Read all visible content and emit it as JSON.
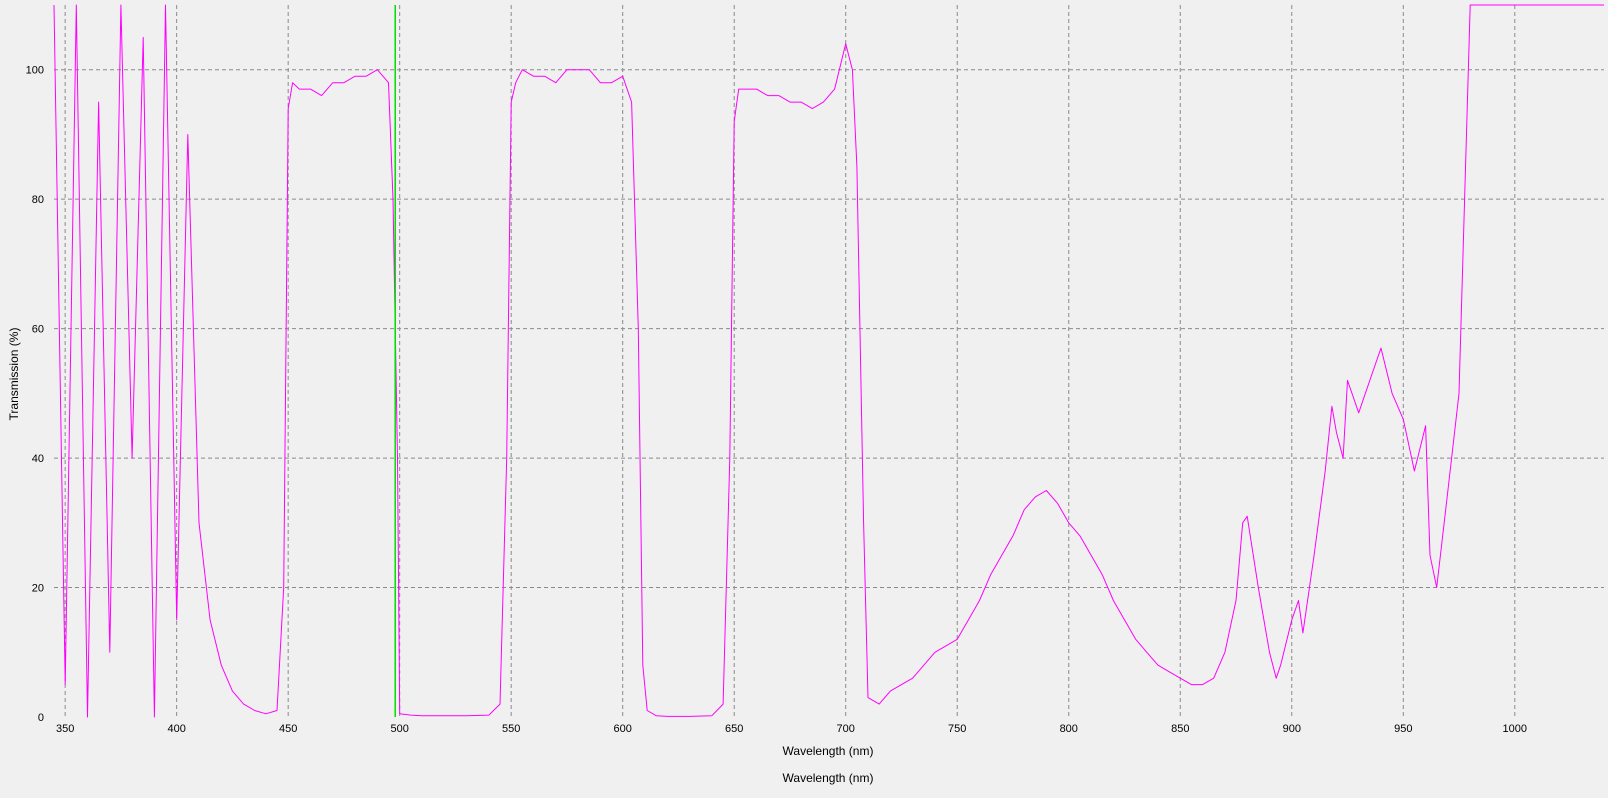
{
  "chart_data": {
    "type": "line",
    "xlabel": "Wavelength (nm)",
    "xlabel_secondary": "Wavelength (nm)",
    "ylabel": "Transmission (%)",
    "xlim": [
      345,
      1040
    ],
    "ylim": [
      0,
      110
    ],
    "x_ticks": [
      350,
      400,
      450,
      500,
      550,
      600,
      650,
      700,
      750,
      800,
      850,
      900,
      950,
      1000
    ],
    "y_ticks": [
      0,
      20,
      40,
      60,
      80,
      100
    ],
    "grid": true,
    "series_color": "#ff00ff",
    "marker": {
      "x": 498,
      "color": "#00dd00"
    },
    "series": [
      {
        "x": [
          345,
          350,
          355,
          360,
          365,
          370,
          375,
          380,
          385,
          390,
          395,
          400,
          405,
          410,
          415,
          420,
          425,
          430,
          435,
          440,
          445,
          448,
          450,
          452,
          455,
          460,
          465,
          470,
          475,
          480,
          485,
          490,
          495,
          497,
          499,
          500,
          505,
          510,
          520,
          530,
          540,
          545,
          548,
          550,
          552,
          555,
          560,
          565,
          570,
          575,
          580,
          585,
          590,
          595,
          600,
          604,
          607,
          609,
          611,
          615,
          620,
          630,
          640,
          645,
          648,
          650,
          652,
          655,
          660,
          665,
          670,
          675,
          680,
          685,
          690,
          695,
          700,
          703,
          705,
          708,
          710,
          715,
          720,
          725,
          730,
          735,
          740,
          745,
          750,
          755,
          760,
          765,
          770,
          775,
          780,
          785,
          790,
          795,
          800,
          805,
          810,
          815,
          820,
          825,
          830,
          835,
          840,
          845,
          850,
          855,
          860,
          865,
          870,
          875,
          878,
          880,
          885,
          890,
          893,
          895,
          900,
          903,
          905,
          910,
          915,
          918,
          920,
          923,
          925,
          930,
          935,
          940,
          945,
          950,
          955,
          960,
          962,
          965,
          970,
          975,
          980,
          985,
          990,
          995,
          1000,
          1005,
          1010,
          1015,
          1020,
          1025,
          1030,
          1035,
          1040
        ],
        "y": [
          110,
          5,
          110,
          0,
          95,
          10,
          110,
          40,
          105,
          0,
          110,
          15,
          90,
          30,
          15,
          8,
          4,
          2,
          1,
          0.5,
          1,
          20,
          94,
          98,
          97,
          97,
          96,
          98,
          98,
          99,
          99,
          100,
          98,
          80,
          40,
          0.5,
          0.3,
          0.2,
          0.2,
          0.2,
          0.3,
          2,
          40,
          95,
          98,
          100,
          99,
          99,
          98,
          100,
          100,
          100,
          98,
          98,
          99,
          95,
          60,
          8,
          1,
          0.2,
          0.1,
          0.1,
          0.2,
          2,
          40,
          92,
          97,
          97,
          97,
          96,
          96,
          95,
          95,
          94,
          95,
          97,
          104,
          100,
          85,
          30,
          3,
          2,
          4,
          5,
          6,
          8,
          10,
          11,
          12,
          15,
          18,
          22,
          25,
          28,
          32,
          34,
          35,
          33,
          30,
          28,
          25,
          22,
          18,
          15,
          12,
          10,
          8,
          7,
          6,
          5,
          5,
          6,
          10,
          18,
          30,
          31,
          20,
          10,
          6,
          8,
          15,
          18,
          13,
          25,
          38,
          48,
          44,
          40,
          52,
          47,
          52,
          57,
          50,
          46,
          38,
          45,
          25,
          20,
          35,
          50,
          110,
          110,
          110,
          110,
          110,
          110,
          110,
          110,
          110,
          110,
          110,
          110,
          110
        ]
      }
    ]
  }
}
